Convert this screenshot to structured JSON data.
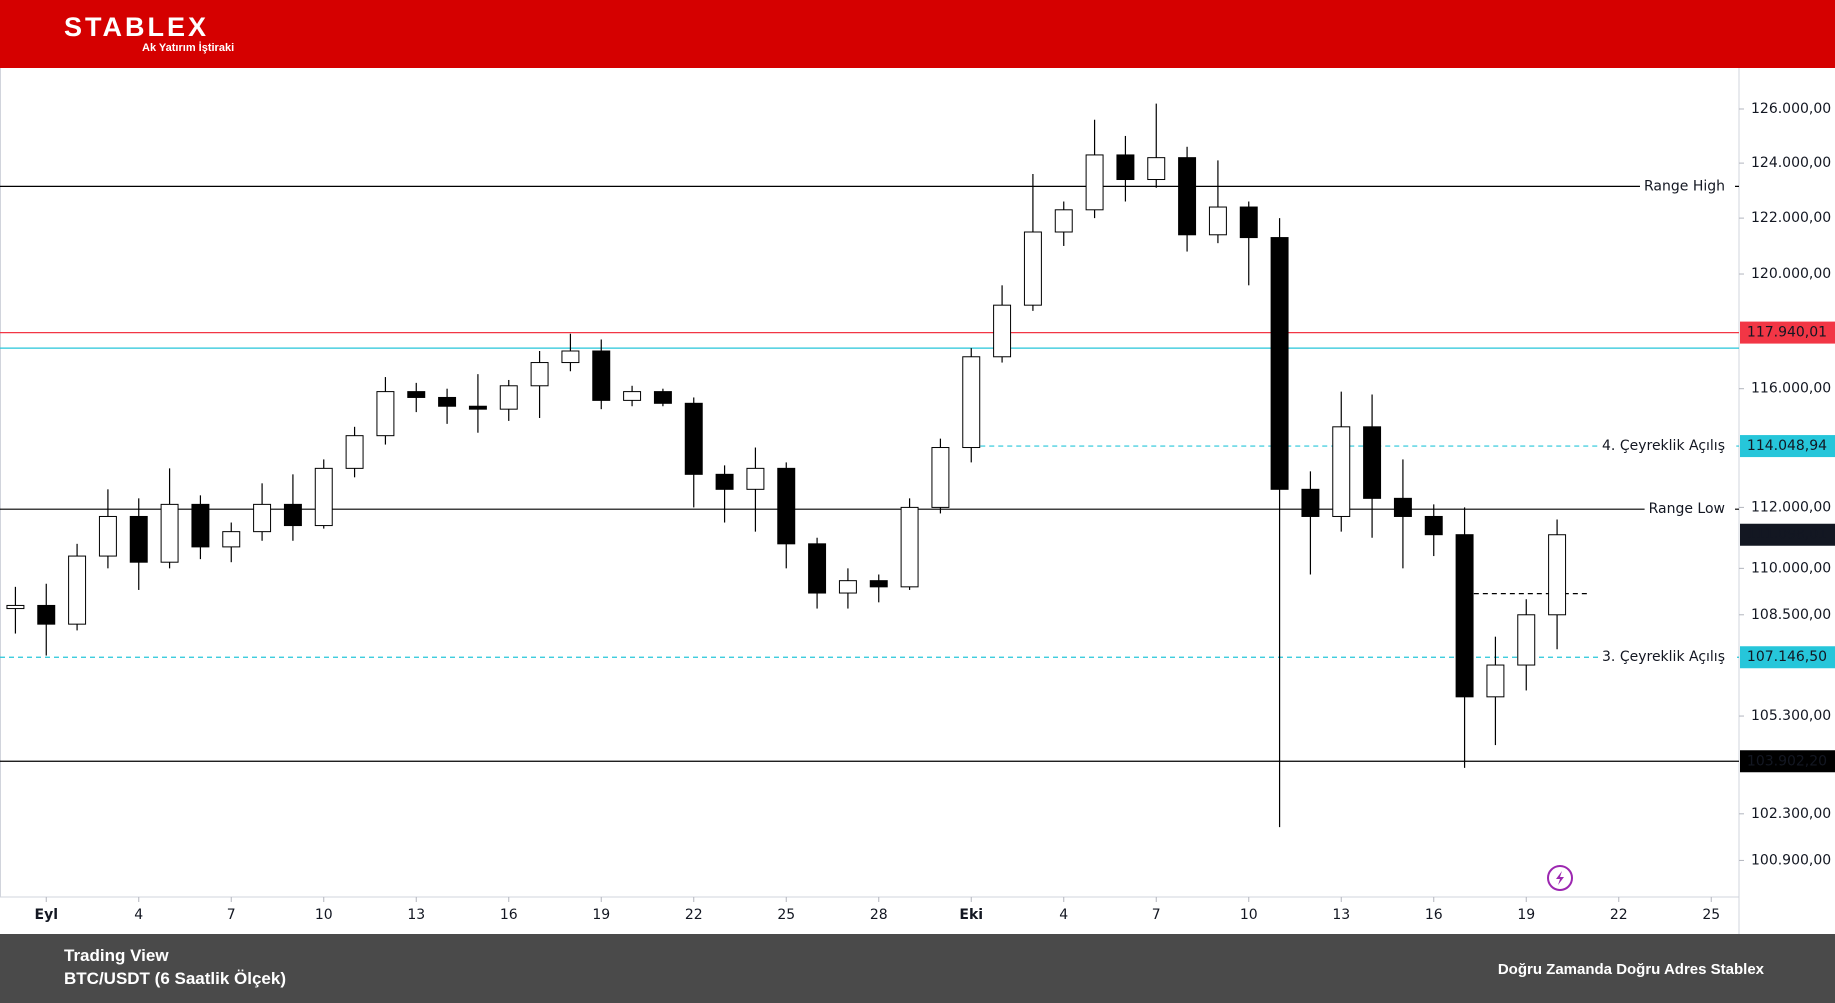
{
  "header": {
    "logo": "STABLEX",
    "tagline": "Ak Yatırım İştiraki"
  },
  "footer": {
    "source": "Trading View",
    "instrument": "BTC/USDT (6 Saatlik Ölçek)",
    "slogan": "Doğru Zamanda Doğru Adres Stablex"
  },
  "chart_data": {
    "type": "candlestick",
    "log_scale": true,
    "up_color": "#ffffff",
    "down_color": "#000000",
    "wick_color": "#000000",
    "xlim": [
      -1.5,
      54.9
    ],
    "ylim": [
      99815,
      127536
    ],
    "xticks": [
      {
        "value": 0,
        "label": "Eyl"
      },
      {
        "value": 3,
        "label": "4"
      },
      {
        "value": 6,
        "label": "7"
      },
      {
        "value": 9,
        "label": "10"
      },
      {
        "value": 12,
        "label": "13"
      },
      {
        "value": 15,
        "label": "16"
      },
      {
        "value": 18,
        "label": "19"
      },
      {
        "value": 21,
        "label": "22"
      },
      {
        "value": 24,
        "label": "25"
      },
      {
        "value": 27,
        "label": "28"
      },
      {
        "value": 30,
        "label": "Eki"
      },
      {
        "value": 33,
        "label": "4"
      },
      {
        "value": 36,
        "label": "7"
      },
      {
        "value": 39,
        "label": "10"
      },
      {
        "value": 42,
        "label": "13"
      },
      {
        "value": 45,
        "label": "16"
      },
      {
        "value": 48,
        "label": "19"
      },
      {
        "value": 51,
        "label": "22"
      },
      {
        "value": 54,
        "label": "25"
      }
    ],
    "yticks": [
      {
        "value": 126000,
        "label": "126.000,00"
      },
      {
        "value": 124000,
        "label": "124.000,00"
      },
      {
        "value": 122000,
        "label": "122.000,00"
      },
      {
        "value": 120000,
        "label": "120.000,00"
      },
      {
        "value": 116000,
        "label": "116.000,00"
      },
      {
        "value": 112000,
        "label": "112.000,00"
      },
      {
        "value": 110000,
        "label": "110.000,00"
      },
      {
        "value": 108500,
        "label": "108.500,00"
      },
      {
        "value": 105300,
        "label": "105.300,00"
      },
      {
        "value": 102300,
        "label": "102.300,00"
      },
      {
        "value": 100900,
        "label": "100.900,00"
      }
    ],
    "x": [
      -1,
      0,
      1,
      2,
      3,
      4,
      5,
      6,
      7,
      8,
      9,
      10,
      11,
      12,
      13,
      14,
      15,
      16,
      17,
      18,
      19,
      20,
      21,
      22,
      23,
      24,
      25,
      26,
      27,
      28,
      29,
      30,
      31,
      32,
      33,
      34,
      35,
      36,
      37,
      38,
      39,
      40,
      41,
      42,
      43,
      44,
      45,
      46,
      47,
      48,
      49
    ],
    "open": [
      108700,
      108800,
      108200,
      110400,
      111700,
      110200,
      112100,
      110700,
      111200,
      112100,
      111400,
      113300,
      114400,
      115900,
      115700,
      115400,
      115300,
      116100,
      116900,
      117300,
      115600,
      115900,
      115500,
      113100,
      112600,
      113300,
      110800,
      109200,
      109600,
      109400,
      112000,
      114000,
      117100,
      118900,
      121500,
      122300,
      124300,
      123400,
      124200,
      121400,
      122400,
      121300,
      112600,
      111700,
      114700,
      112300,
      111700,
      111100,
      105900,
      106900,
      108500
    ],
    "high": [
      109400,
      109500,
      110800,
      112600,
      112300,
      113300,
      112400,
      111500,
      112800,
      113100,
      113600,
      114700,
      116400,
      116200,
      116000,
      116500,
      116300,
      117300,
      117900,
      117700,
      116100,
      116000,
      115700,
      113400,
      114000,
      113500,
      111000,
      110000,
      109800,
      112300,
      114300,
      117400,
      119600,
      123600,
      122600,
      125600,
      125000,
      126200,
      124600,
      124100,
      122600,
      122000,
      113200,
      115900,
      115800,
      113600,
      112100,
      112000,
      107800,
      109000,
      111600
    ],
    "low": [
      107900,
      107200,
      108000,
      110000,
      109300,
      110000,
      110300,
      110200,
      110900,
      110900,
      111300,
      113000,
      114100,
      115200,
      114800,
      114500,
      114900,
      115000,
      116600,
      115300,
      115400,
      115400,
      112000,
      111500,
      111200,
      110000,
      108700,
      108700,
      108900,
      109300,
      111800,
      113500,
      116900,
      118700,
      121000,
      122000,
      122600,
      123100,
      120800,
      121100,
      119600,
      101900,
      109800,
      111200,
      111000,
      110000,
      110400,
      103700,
      104400,
      106100,
      107400
    ],
    "close": [
      108800,
      108200,
      110400,
      111700,
      110200,
      112100,
      110700,
      111200,
      112100,
      111400,
      113300,
      114400,
      115900,
      115700,
      115400,
      115300,
      116100,
      116900,
      117300,
      115600,
      115900,
      115500,
      113100,
      112600,
      113300,
      110800,
      109200,
      109600,
      109400,
      112000,
      114000,
      117100,
      118900,
      121500,
      122300,
      124300,
      123400,
      124200,
      121400,
      122400,
      121300,
      112600,
      111700,
      114700,
      112300,
      111700,
      111100,
      105900,
      106900,
      108500,
      111098.01
    ],
    "price_tag": {
      "value": 111098.01,
      "label": "111.098,01",
      "color": "#131722"
    },
    "levels": [
      {
        "name": "Range High",
        "value": 123150,
        "color": "#000000",
        "style": "solid"
      },
      {
        "value": 117940.01,
        "value_label": "117.940,01",
        "color": "#f23645",
        "style": "solid"
      },
      {
        "value": 117400,
        "color": "#26c6da",
        "style": "solid"
      },
      {
        "name": "4. Çeyreklik Açılış",
        "value": 114048.94,
        "value_label": "114.048,94",
        "color": "#26c6da",
        "style": "dashed",
        "from": 30
      },
      {
        "name": "Range Low",
        "value": 111940,
        "color": "#000000",
        "style": "solid"
      },
      {
        "value": 109180,
        "color": "#000000",
        "style": "dashed",
        "from": 46.3,
        "to": 50
      },
      {
        "name": "3. Çeyreklik Açılış",
        "value": 107146.5,
        "value_label": "107.146,50",
        "color": "#26c6da",
        "style": "dashed"
      },
      {
        "value": 103902.2,
        "value_label": "103.902,20",
        "color": "#000000",
        "style": "solid"
      }
    ]
  }
}
